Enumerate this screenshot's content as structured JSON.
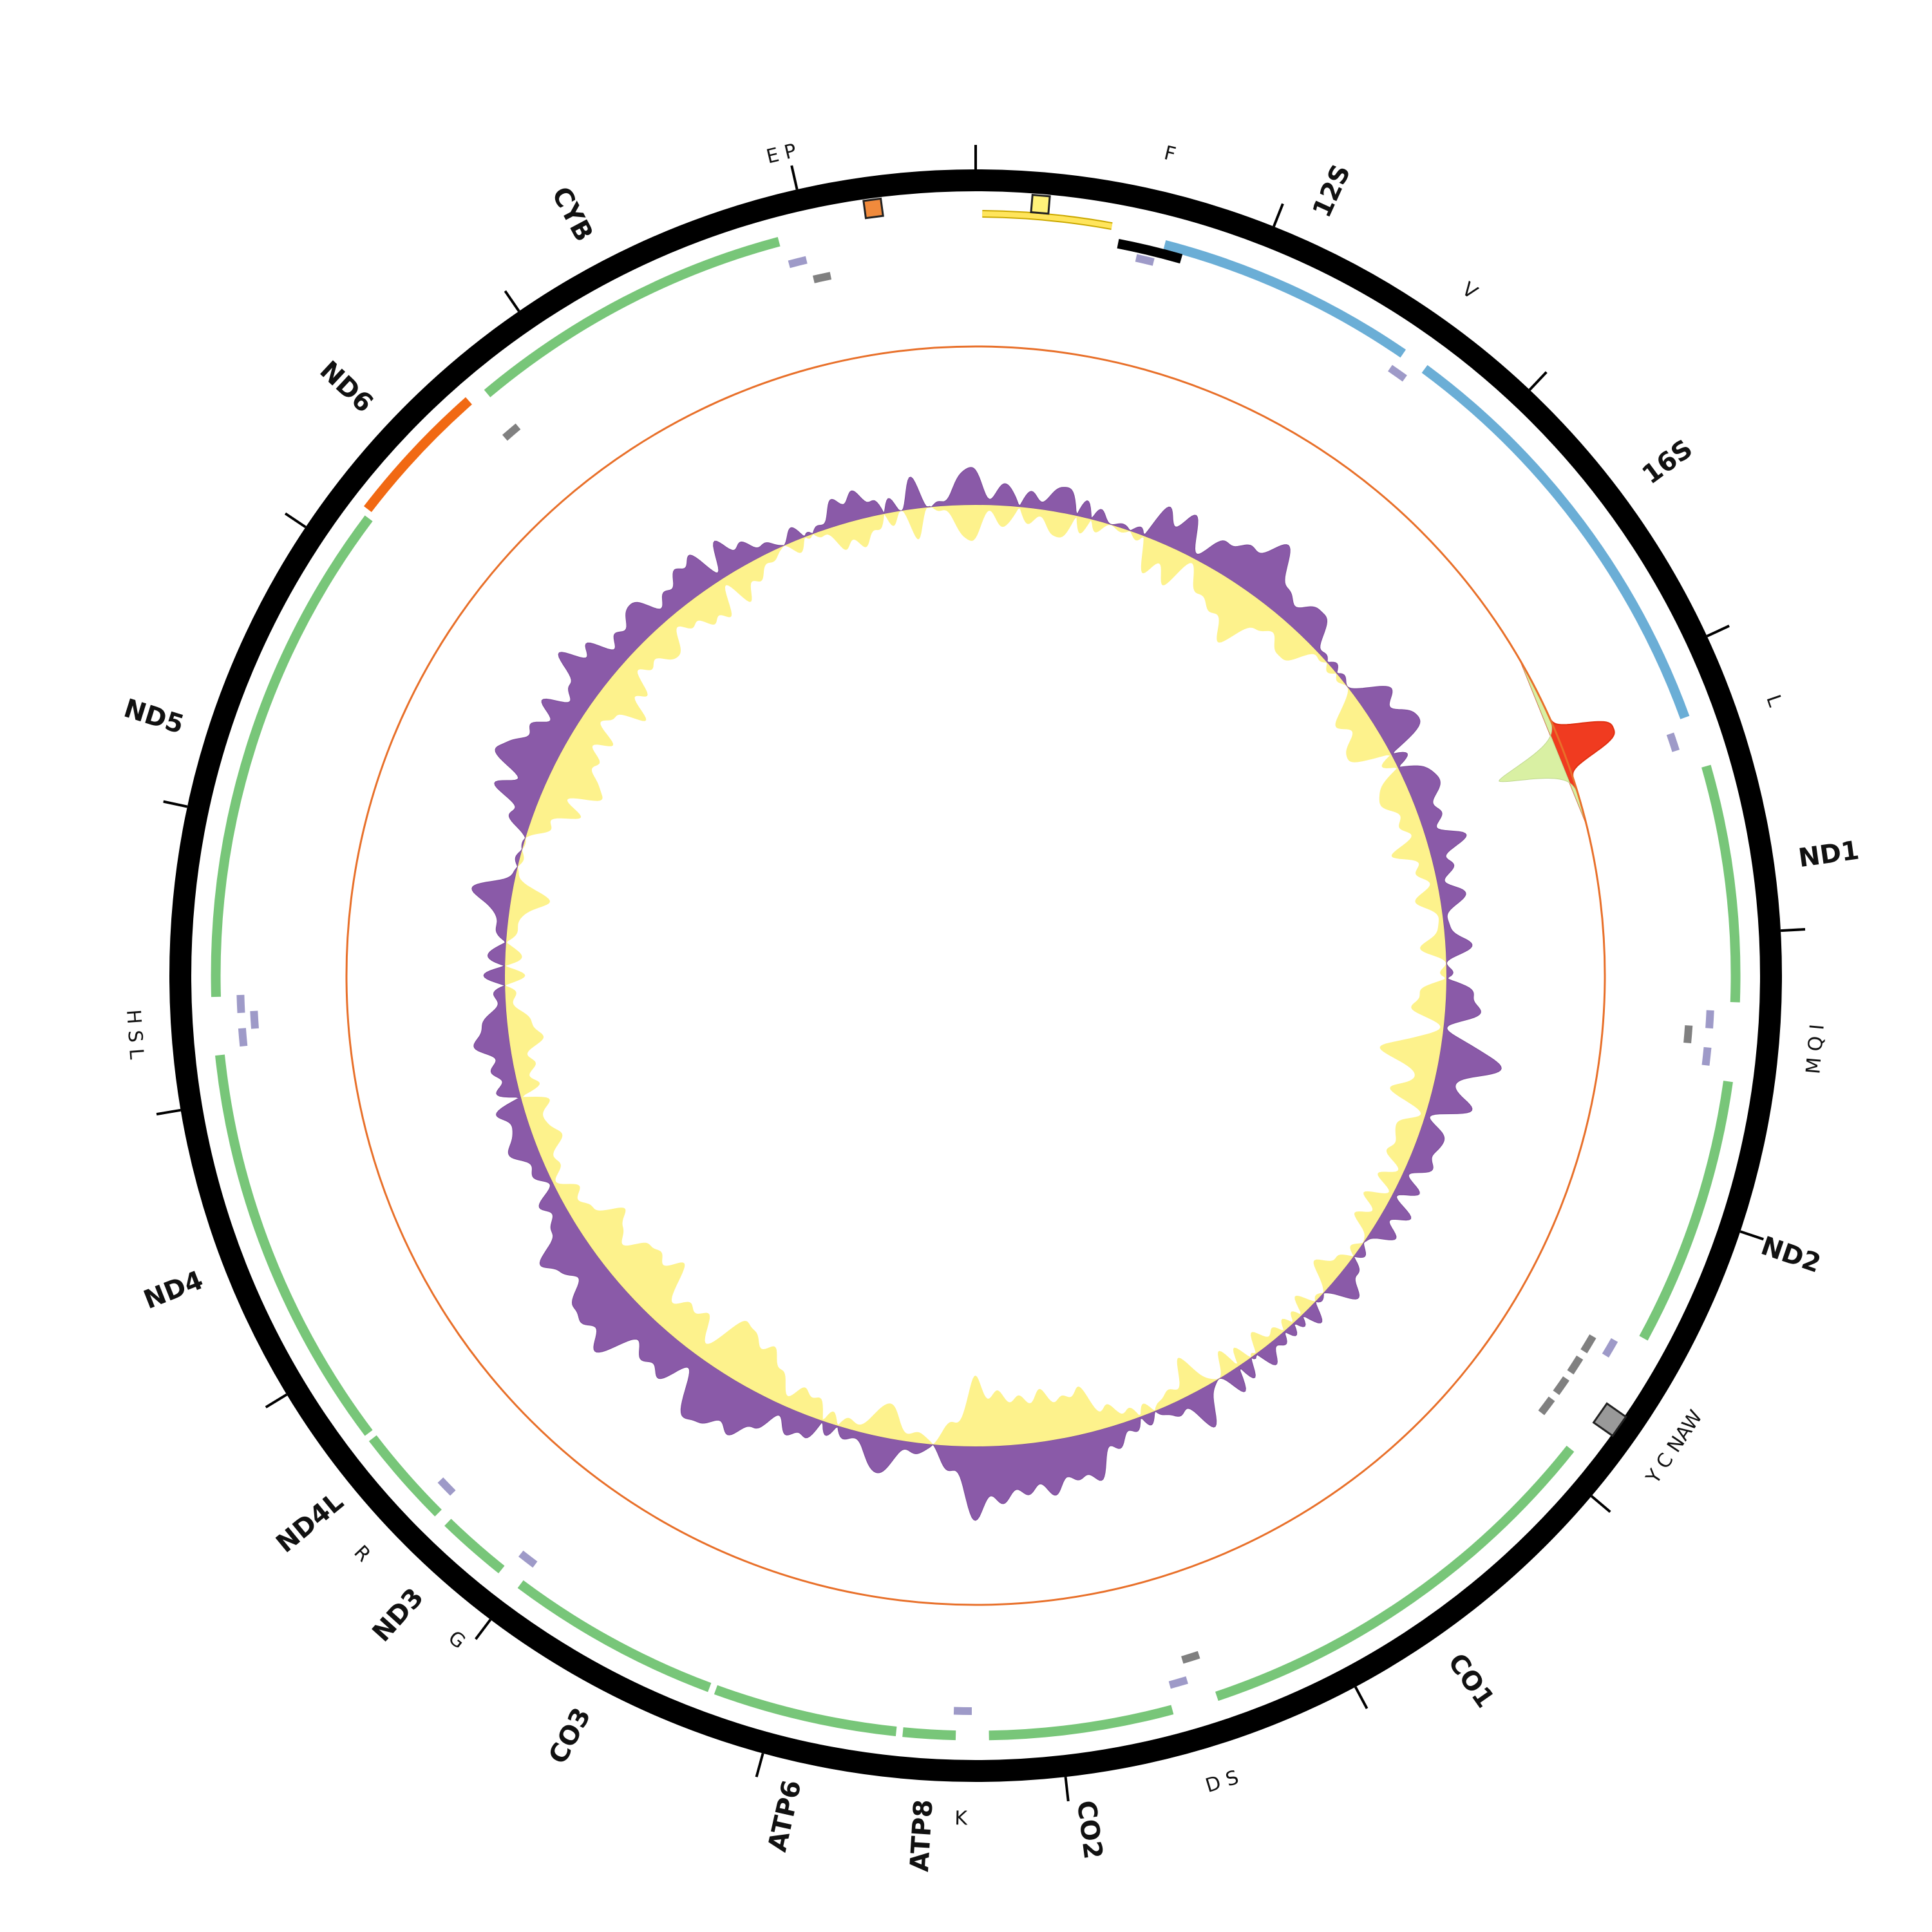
{
  "genes": [
    "12S",
    "16S",
    "ND1",
    "ND2",
    "CO1",
    "CO2",
    "ATP8",
    "ATP6",
    "CO3",
    "ND3",
    "ND4L",
    "ND4",
    "ND5",
    "ND6",
    "CYB"
  ],
  "trnas": [
    "E P",
    "F",
    "V",
    "L",
    "M Q I",
    "Y C NAW",
    "D S",
    "K",
    "G",
    "R",
    "H S L"
  ]
}
